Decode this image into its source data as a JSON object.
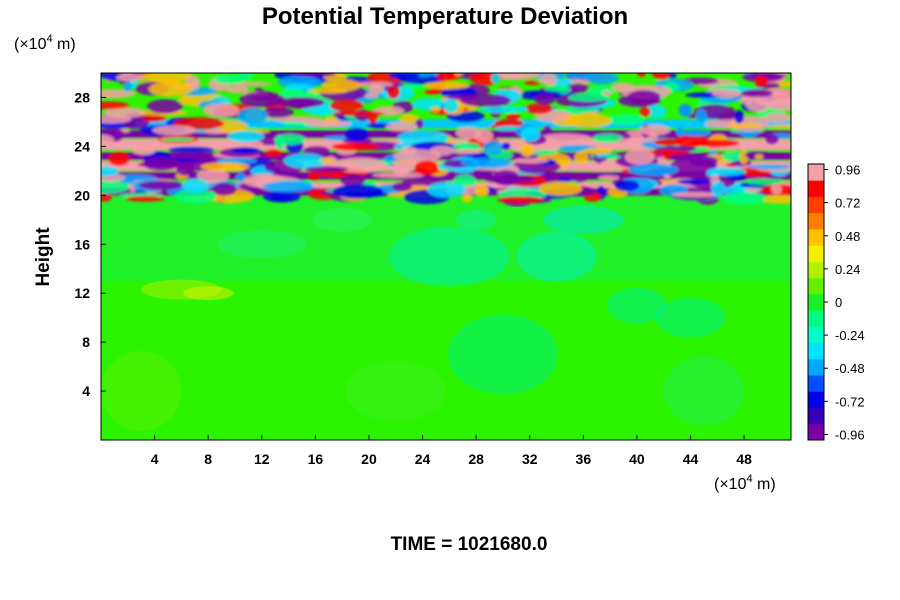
{
  "chart_data": {
    "type": "heatmap",
    "title": "Potential Temperature Deviation",
    "ylabel": "Height",
    "xlabel": "",
    "x_unit_prefix": "(×10",
    "x_unit_exp": "4",
    "x_unit_suffix": " m)",
    "y_unit_prefix": "(×10",
    "y_unit_exp": "4",
    "y_unit_suffix": " m)",
    "xlim": [
      0,
      51.5
    ],
    "ylim": [
      0,
      30
    ],
    "x_ticks": [
      4,
      8,
      12,
      16,
      20,
      24,
      28,
      32,
      36,
      40,
      44,
      48
    ],
    "y_ticks": [
      4,
      8,
      12,
      16,
      20,
      24,
      28
    ],
    "colorbar": {
      "range": [
        -1.0,
        1.0
      ],
      "ticks": [
        0.96,
        0.72,
        0.48,
        0.24,
        0,
        -0.24,
        -0.48,
        -0.72,
        -0.96
      ],
      "colors": [
        "#7a00a8",
        "#3500b8",
        "#0000e8",
        "#0050ff",
        "#00a8ff",
        "#00e4ff",
        "#00ffc8",
        "#00ff80",
        "#18f028",
        "#60f000",
        "#b0f000",
        "#f0f000",
        "#ffc000",
        "#ff8000",
        "#ff4000",
        "#ff0000",
        "#f4a0a8"
      ]
    },
    "footer_text": "TIME = 1021680.0"
  }
}
